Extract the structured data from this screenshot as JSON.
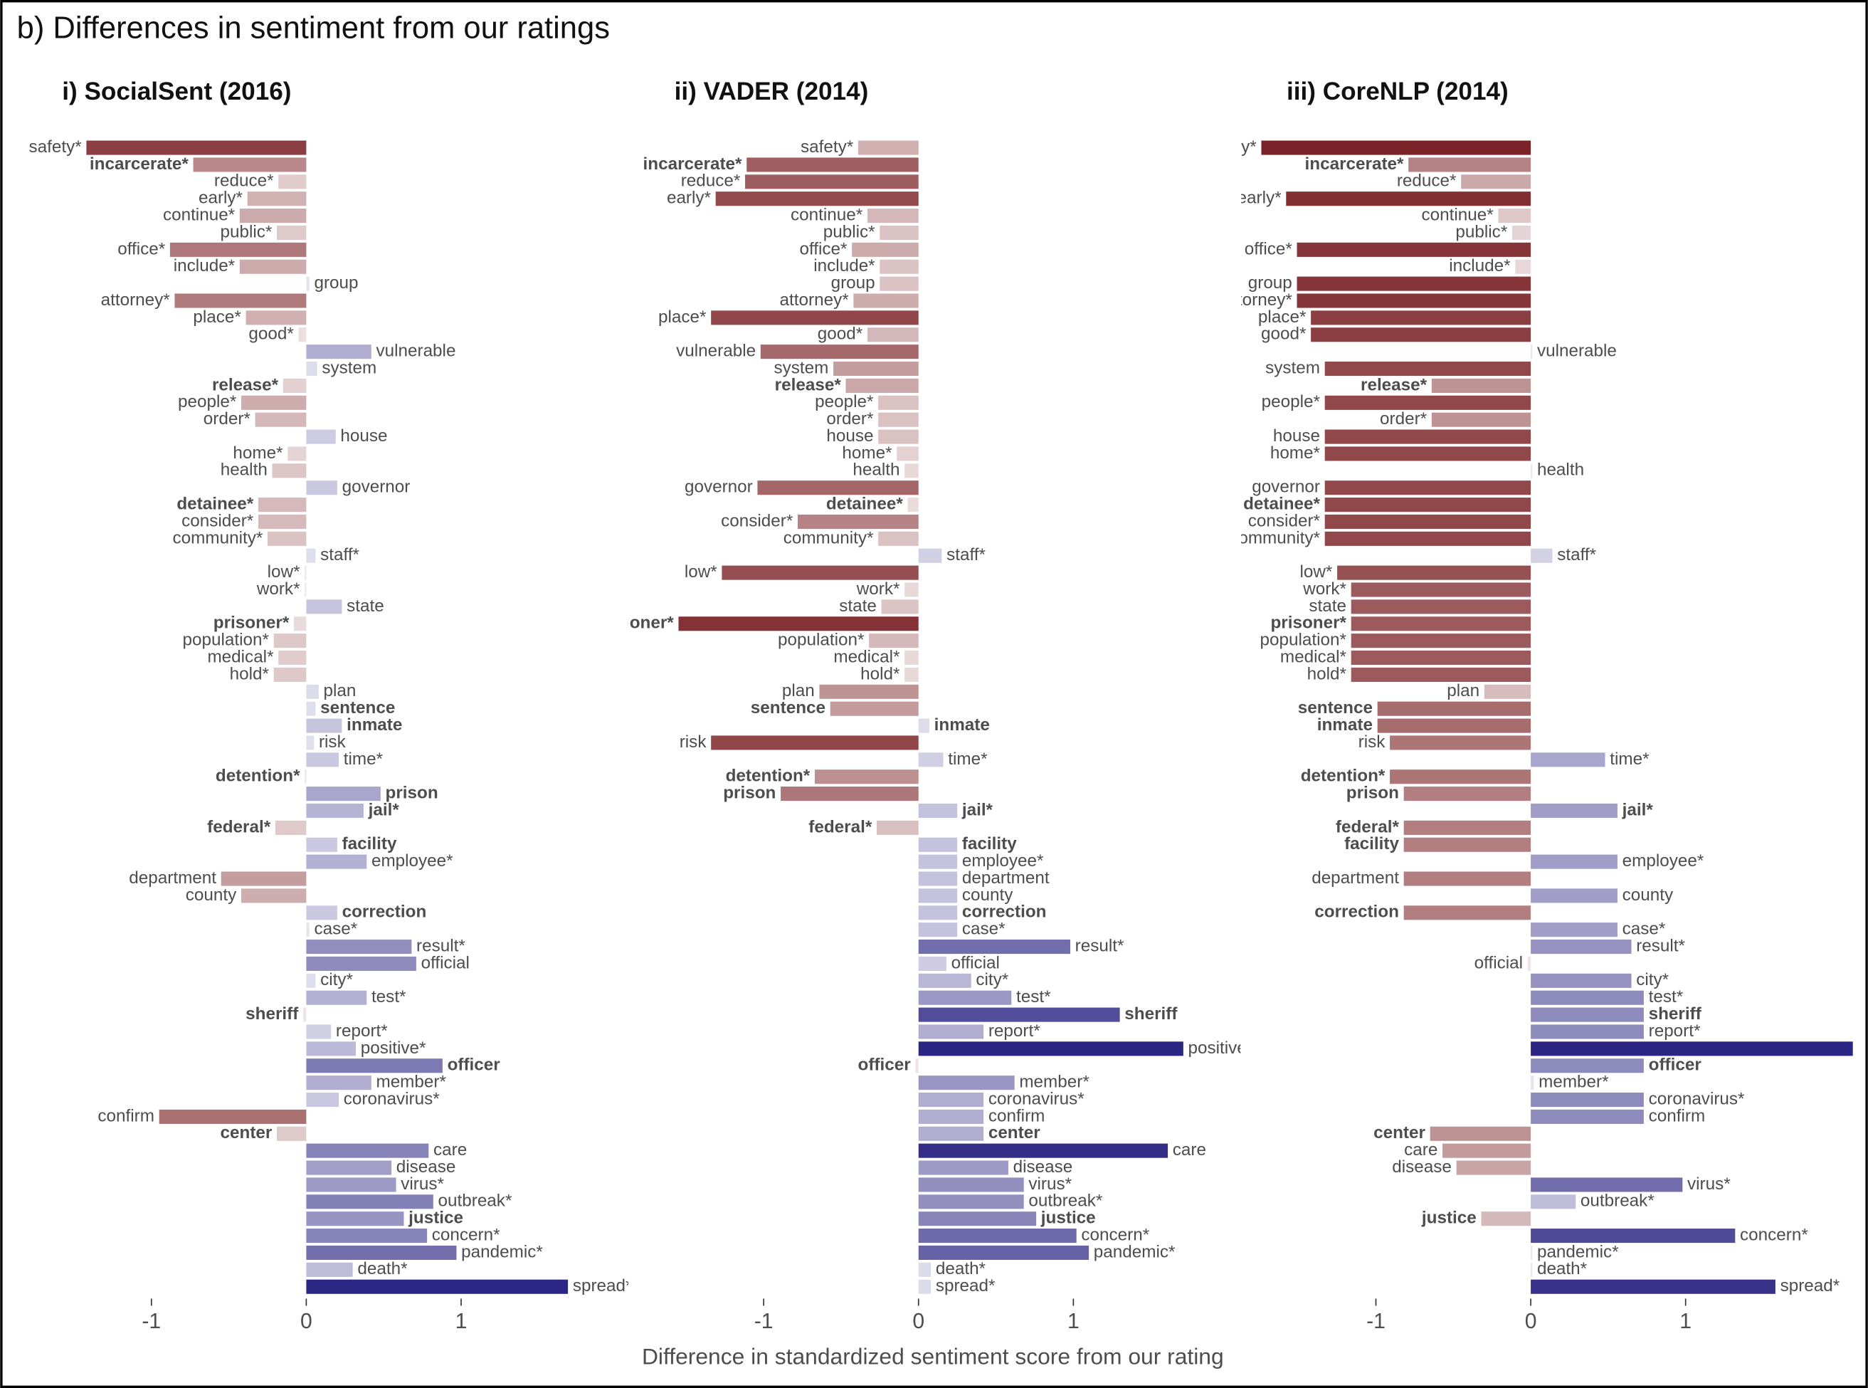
{
  "chart_data": {
    "type": "bar",
    "orientation": "horizontal",
    "title": "b) Differences in sentiment from our ratings",
    "x_label": "Difference in standardized sentiment score from our rating",
    "xlim": [
      -1.87,
      2.08
    ],
    "xticks": [
      -1,
      0,
      1
    ],
    "colors": {
      "negative": "#7b2326",
      "positive": "#2b2583"
    },
    "categories": [
      "safety*",
      "incarcerate*",
      "reduce*",
      "early*",
      "continue*",
      "public*",
      "office*",
      "include*",
      "group",
      "attorney*",
      "place*",
      "good*",
      "vulnerable",
      "system",
      "release*",
      "people*",
      "order*",
      "house",
      "home*",
      "health",
      "governor",
      "detainee*",
      "consider*",
      "community*",
      "staff*",
      "low*",
      "work*",
      "state",
      "prisoner*",
      "population*",
      "medical*",
      "hold*",
      "plan",
      "sentence",
      "inmate",
      "risk",
      "time*",
      "detention*",
      "prison",
      "jail*",
      "federal*",
      "facility",
      "employee*",
      "department",
      "county",
      "correction",
      "case*",
      "result*",
      "official",
      "city*",
      "test*",
      "sheriff",
      "report*",
      "positive*",
      "officer",
      "member*",
      "coronavirus*",
      "confirm",
      "center",
      "care",
      "disease",
      "virus*",
      "outbreak*",
      "justice",
      "concern*",
      "pandemic*",
      "death*",
      "spread*"
    ],
    "bold": [
      false,
      true,
      false,
      false,
      false,
      false,
      false,
      false,
      false,
      false,
      false,
      false,
      false,
      false,
      true,
      false,
      false,
      false,
      false,
      false,
      false,
      true,
      false,
      false,
      false,
      false,
      false,
      false,
      true,
      false,
      false,
      false,
      false,
      true,
      true,
      false,
      false,
      true,
      true,
      true,
      true,
      true,
      false,
      false,
      false,
      true,
      false,
      false,
      false,
      false,
      false,
      true,
      false,
      false,
      true,
      false,
      false,
      false,
      true,
      false,
      false,
      false,
      false,
      true,
      false,
      false,
      false,
      false
    ],
    "series": [
      {
        "name": "i) SocialSent (2016)",
        "values": [
          -1.42,
          -0.73,
          -0.18,
          -0.38,
          -0.43,
          -0.19,
          -0.88,
          -0.43,
          0.02,
          -0.85,
          -0.39,
          -0.05,
          0.42,
          0.07,
          -0.15,
          -0.42,
          -0.33,
          0.19,
          -0.12,
          -0.22,
          0.2,
          -0.31,
          -0.31,
          -0.25,
          0.06,
          -0.01,
          -0.01,
          0.23,
          -0.08,
          -0.21,
          -0.18,
          -0.21,
          0.08,
          0.06,
          0.23,
          0.05,
          0.21,
          -0.01,
          0.48,
          0.37,
          -0.2,
          0.2,
          0.39,
          -0.55,
          -0.42,
          0.2,
          0.02,
          0.68,
          0.71,
          0.06,
          0.39,
          -0.02,
          0.16,
          0.32,
          0.88,
          0.42,
          0.21,
          -0.95,
          -0.19,
          0.79,
          0.55,
          0.58,
          0.82,
          0.63,
          0.78,
          0.97,
          0.3,
          1.69
        ]
      },
      {
        "name": "ii) VADER (2014)",
        "values": [
          -0.39,
          -1.11,
          -1.12,
          -1.31,
          -0.33,
          -0.25,
          -0.43,
          -0.25,
          -0.25,
          -0.42,
          -1.34,
          -0.33,
          -1.02,
          -0.55,
          -0.47,
          -0.26,
          -0.26,
          -0.26,
          -0.14,
          -0.09,
          -1.04,
          -0.07,
          -0.78,
          -0.26,
          0.15,
          -1.27,
          -0.09,
          -0.24,
          -1.55,
          -0.32,
          -0.09,
          -0.09,
          -0.64,
          -0.57,
          0.07,
          -1.34,
          0.16,
          -0.67,
          -0.89,
          0.25,
          -0.27,
          0.25,
          0.25,
          0.25,
          0.25,
          0.25,
          0.25,
          0.98,
          0.18,
          0.34,
          0.6,
          1.3,
          0.42,
          1.71,
          -0.02,
          0.62,
          0.42,
          0.42,
          0.42,
          1.61,
          0.58,
          0.68,
          0.68,
          0.76,
          1.02,
          1.1,
          0.08,
          0.08
        ]
      },
      {
        "name": "iii) CoreNLP (2014)",
        "values": [
          -1.74,
          -0.79,
          -0.45,
          -1.58,
          -0.21,
          -0.12,
          -1.51,
          -0.1,
          -1.51,
          -1.51,
          -1.42,
          -1.42,
          0.01,
          -1.33,
          -0.64,
          -1.33,
          -0.64,
          -1.33,
          -1.33,
          0.01,
          -1.33,
          -1.33,
          -1.33,
          -1.33,
          0.14,
          -1.25,
          -1.16,
          -1.16,
          -1.16,
          -1.16,
          -1.16,
          -1.16,
          -0.3,
          -0.99,
          -0.99,
          -0.91,
          0.48,
          -0.91,
          -0.82,
          0.56,
          -0.82,
          -0.82,
          0.56,
          -0.82,
          0.56,
          -0.82,
          0.56,
          0.65,
          -0.02,
          0.65,
          0.73,
          0.73,
          0.73,
          2.1,
          0.73,
          0.02,
          0.73,
          0.73,
          -0.65,
          -0.57,
          -0.48,
          0.98,
          0.29,
          -0.32,
          1.32,
          0.01,
          0.01,
          1.58
        ]
      }
    ]
  }
}
